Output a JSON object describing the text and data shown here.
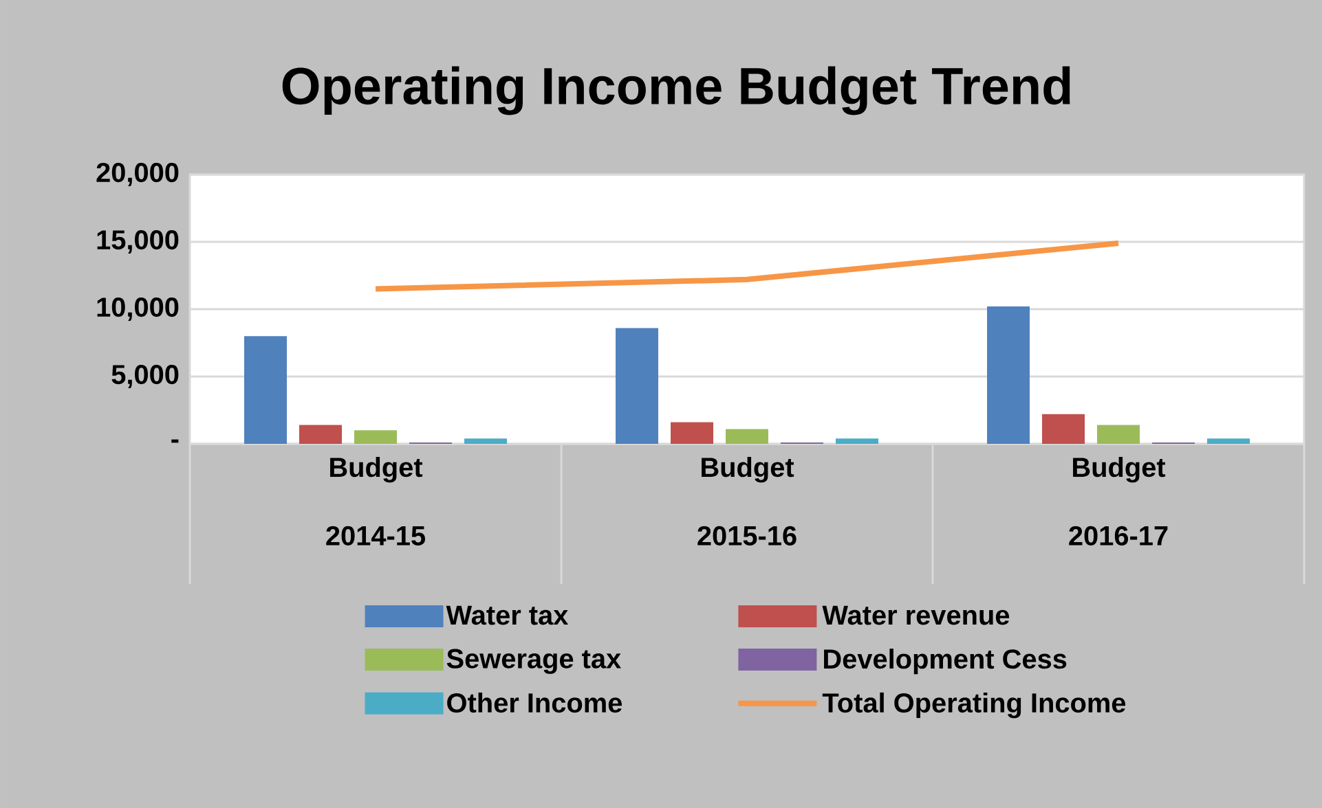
{
  "chart_data": {
    "type": "bar",
    "title": "Operating Income Budget Trend",
    "categories": [
      "Budget 2014-15",
      "Budget 2015-16",
      "Budget 2016-17"
    ],
    "series": [
      {
        "name": "Water tax",
        "color": "#4f81bd",
        "values": [
          8000,
          8600,
          10200
        ]
      },
      {
        "name": "Water revenue",
        "color": "#c0504d",
        "values": [
          1400,
          1600,
          2200
        ]
      },
      {
        "name": "Sewerage tax",
        "color": "#9bbb59",
        "values": [
          1000,
          1100,
          1400
        ]
      },
      {
        "name": "Development Cess",
        "color": "#8064a2",
        "values": [
          100,
          100,
          100
        ]
      },
      {
        "name": "Other Income",
        "color": "#4bacc6",
        "values": [
          400,
          400,
          400
        ]
      },
      {
        "name": "Total Operating Income",
        "color": "#f79646",
        "type": "line",
        "values": [
          11500,
          12200,
          14900
        ]
      }
    ],
    "ylim": [
      0,
      20000
    ],
    "yticks": [
      {
        "value": 0,
        "label": "-"
      },
      {
        "value": 5000,
        "label": "5,000"
      },
      {
        "value": 10000,
        "label": "10,000"
      },
      {
        "value": 15000,
        "label": "15,000"
      },
      {
        "value": 20000,
        "label": "20,000"
      }
    ],
    "grid": "y",
    "legend": "bottom"
  }
}
